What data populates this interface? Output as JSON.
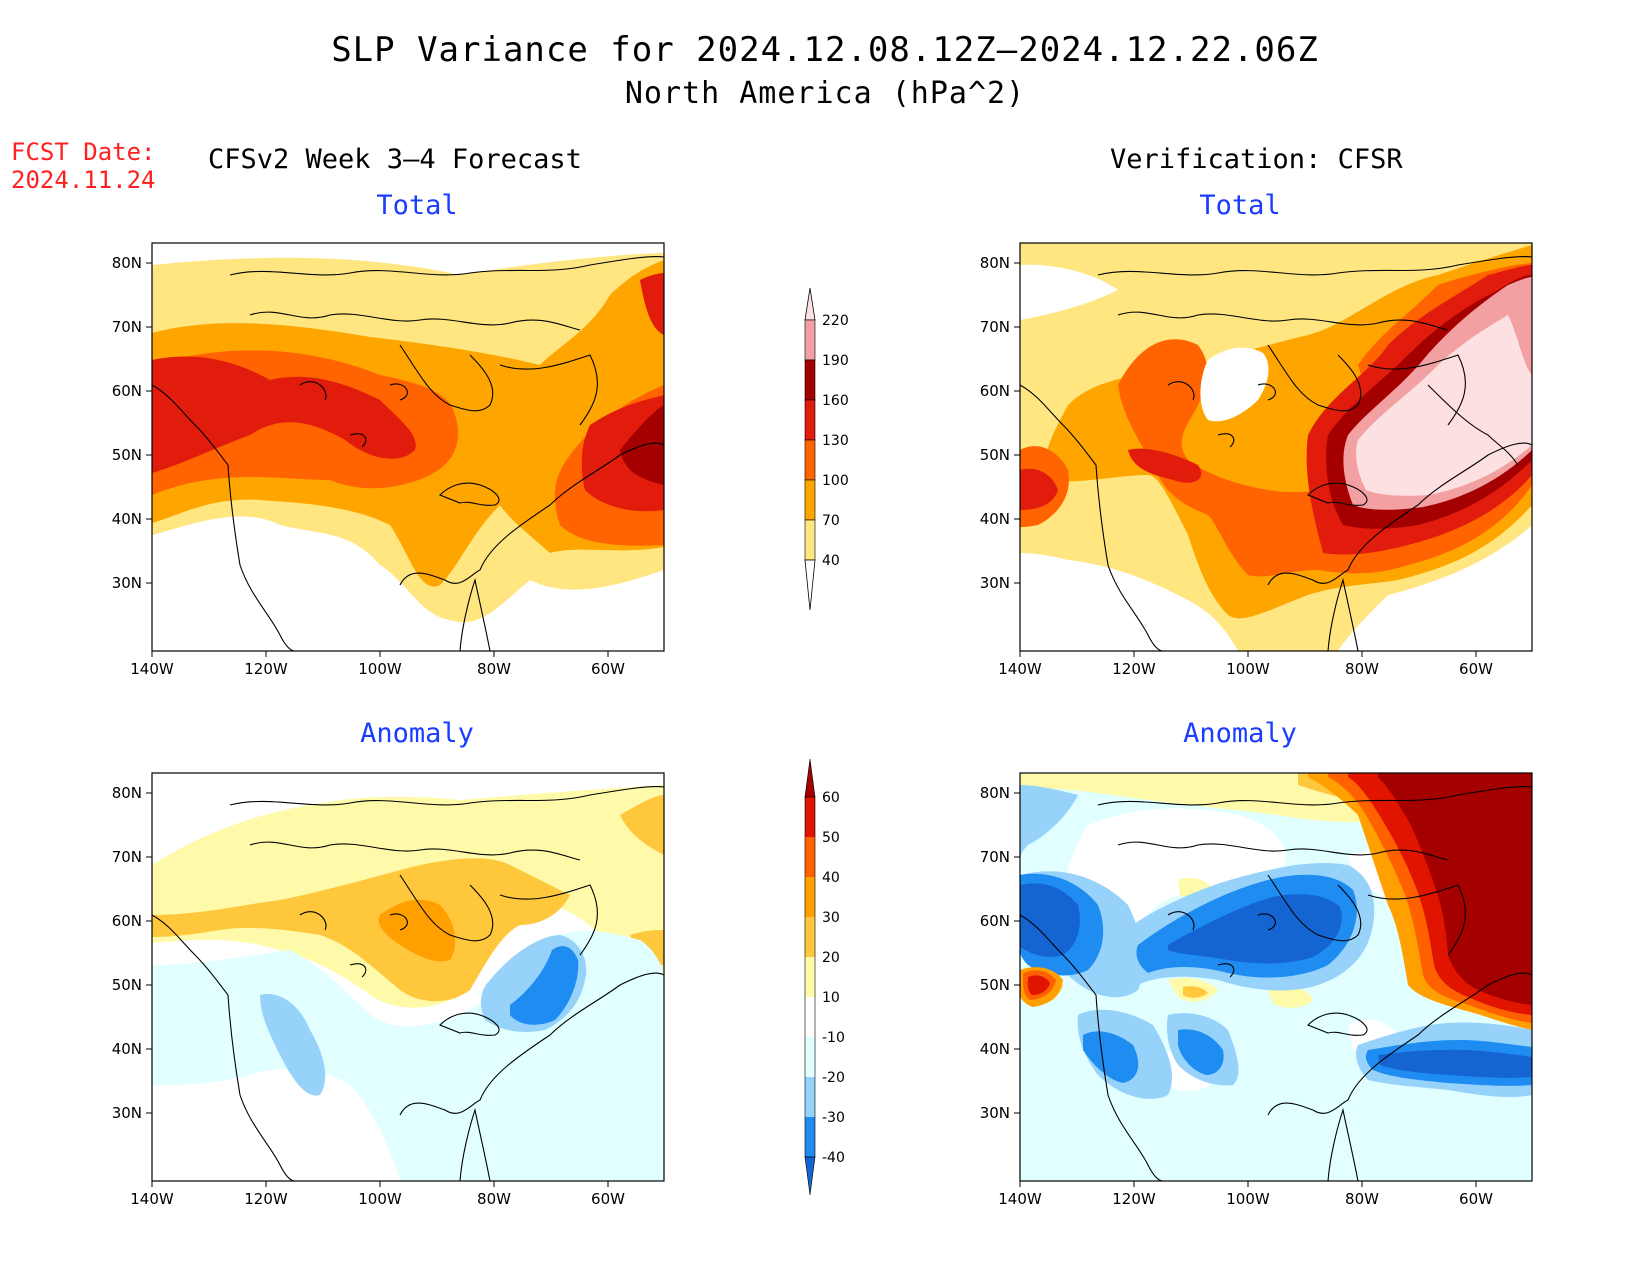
{
  "title": "SLP Variance for 2024.12.08.12Z–2024.12.22.06Z",
  "subtitle": "North America (hPa^2)",
  "forecast_date": {
    "label": "FCST Date:",
    "value": "2024.11.24"
  },
  "left_header": "CFSv2 Week 3–4 Forecast",
  "right_header": "Verification: CFSR",
  "panels": {
    "top_left_label": "Total",
    "top_right_label": "Total",
    "bottom_left_label": "Anomaly",
    "bottom_right_label": "Anomaly"
  },
  "axes": {
    "lat_labels": [
      "80N",
      "70N",
      "60N",
      "50N",
      "40N",
      "30N"
    ],
    "lon_labels": [
      "140W",
      "120W",
      "100W",
      "80W",
      "60W"
    ]
  },
  "total_colorbar": {
    "levels": [
      "40",
      "70",
      "100",
      "130",
      "160",
      "190",
      "220"
    ],
    "colors": [
      "#ffe680",
      "#ffa500",
      "#ff6400",
      "#e11c0d",
      "#a50000",
      "#f2a0a2",
      "#fde0e2"
    ]
  },
  "anomaly_colorbar": {
    "levels": [
      "-40",
      "-30",
      "-20",
      "-10",
      "10",
      "20",
      "30",
      "40",
      "50",
      "60"
    ],
    "colors": [
      "#1464d2",
      "#1e8cf0",
      "#96d2fa",
      "#e1ffff",
      "#ffffff",
      "#fffaaa",
      "#ffc83c",
      "#ffa000",
      "#ff6000",
      "#e11400",
      "#a50000"
    ]
  },
  "palette": {
    "t_white": "#ffffff",
    "t1": "#ffe680",
    "t2": "#ffa500",
    "t3": "#ff6400",
    "t4": "#e11c0d",
    "t5": "#a50000",
    "t6": "#f2a0a2",
    "t7": "#fde0e2",
    "a_n40": "#1464d2",
    "a_n30": "#1e8cf0",
    "a_n20": "#96d2fa",
    "a_n10": "#e1ffff",
    "a_0": "#ffffff",
    "a_10": "#fffaaa",
    "a_20": "#ffc83c",
    "a_30": "#ffa000",
    "a_40": "#ff6000",
    "a_50": "#e11400",
    "a_60": "#a50000",
    "label_blue": "#1a3cff",
    "fcst_red": "#ff2020"
  }
}
